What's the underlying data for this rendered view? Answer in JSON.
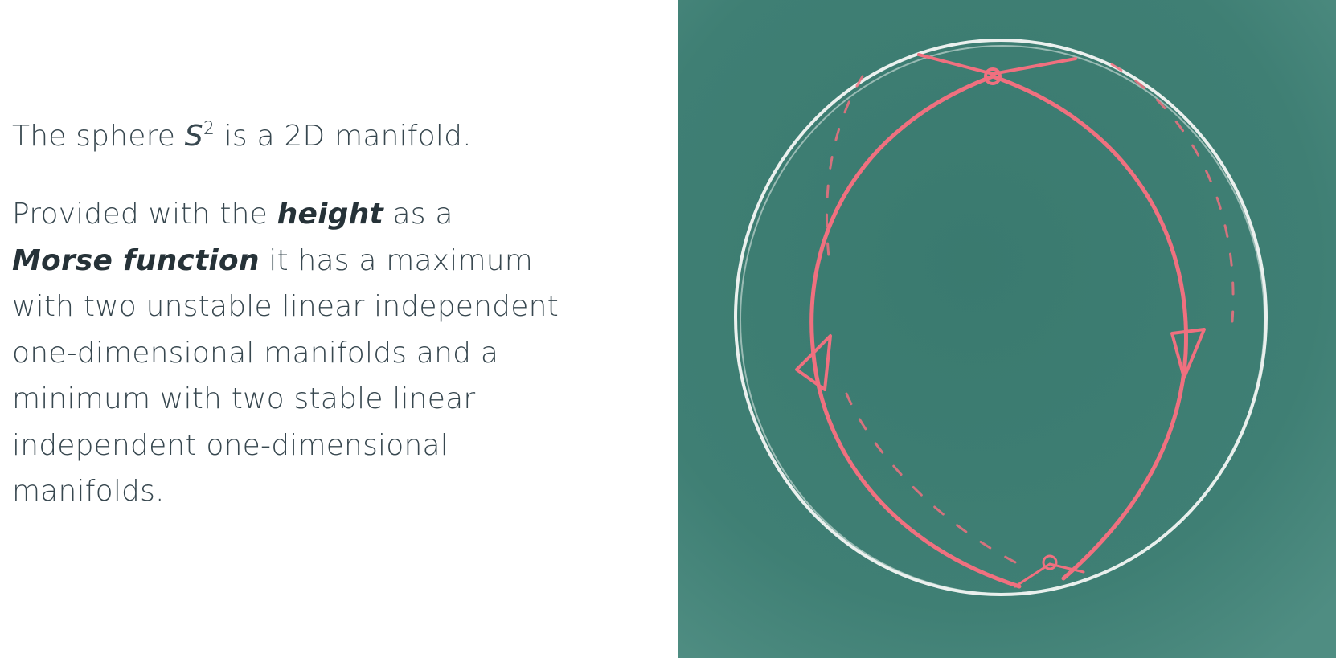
{
  "slide": {
    "intro": {
      "prefix": "The sphere ",
      "symbol": "S",
      "exponent": "2",
      "suffix": " is a 2D manifold."
    },
    "body": {
      "l1_a": "Provided with the ",
      "l1_em": "height",
      "l1_b": " as a",
      "l2_em": "Morse function",
      "l2_b": " it has a maximum",
      "l3": "with two unstable linear independent",
      "l4": "one-dimensional manifolds and a",
      "l5": "minimum with two stable linear",
      "l6": "independent one-dimensional",
      "l7": "manifolds."
    }
  },
  "illustration": {
    "board_color": "#3f7f74",
    "chalk_white": "#f4f7f4",
    "chalk_red": "#f0707f"
  }
}
